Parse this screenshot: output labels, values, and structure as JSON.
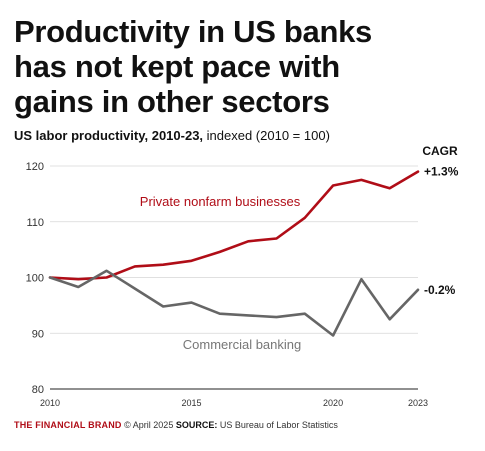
{
  "title_lines": [
    "Productivity in US banks",
    "has not kept pace with",
    "gains in other sectors"
  ],
  "subtitle_bold": "US labor productivity, 2010-23,",
  "subtitle_rest": " indexed (2010 = 100)",
  "footer": {
    "brand": "THE FINANCIAL BRAND",
    "date": "© April 2025",
    "source_label": "SOURCE:",
    "source_text": "US Bureau of Labor Statistics"
  },
  "chart_data": {
    "type": "line",
    "title": "US labor productivity, 2010-23, indexed (2010 = 100)",
    "x": [
      2010,
      2011,
      2012,
      2013,
      2014,
      2015,
      2016,
      2017,
      2018,
      2019,
      2020,
      2021,
      2022,
      2023
    ],
    "x_ticks": [
      "2010",
      "2015",
      "2020",
      "2023"
    ],
    "x_tick_values": [
      2010,
      2015,
      2020,
      2023
    ],
    "y_ticks": [
      "80",
      "90",
      "100",
      "110",
      "120"
    ],
    "y_tick_values": [
      80,
      90,
      100,
      110,
      120
    ],
    "ylim": [
      80,
      120
    ],
    "xlim": [
      2010,
      2023
    ],
    "grid": true,
    "cagr_header": "CAGR",
    "series": [
      {
        "name": "Private nonfarm businesses",
        "color": "#b00d17",
        "values": [
          100,
          99.7,
          100,
          102,
          102.3,
          103,
          104.6,
          106.5,
          107,
          110.7,
          116.5,
          117.5,
          116,
          119
        ],
        "cagr": "+1.3%"
      },
      {
        "name": "Commercial banking",
        "color": "#666666",
        "values": [
          100,
          98.3,
          101.2,
          98,
          94.8,
          95.5,
          93.5,
          93.2,
          92.9,
          93.5,
          89.6,
          99.7,
          92.5,
          97.8
        ],
        "cagr": "-0.2%"
      }
    ]
  }
}
